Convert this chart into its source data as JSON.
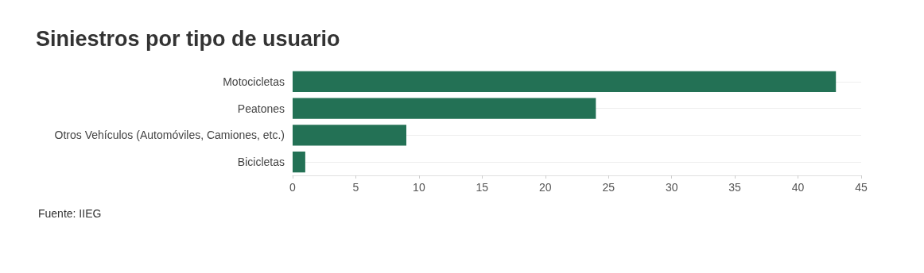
{
  "chart_data": {
    "type": "bar",
    "orientation": "horizontal",
    "title": "Siniestros por tipo de usuario",
    "categories": [
      "Motocicletas",
      "Peatones",
      "Otros Vehículos (Automóviles, Camiones, etc.)",
      "Bicicletas"
    ],
    "values": [
      43,
      24,
      9,
      1
    ],
    "color": "#237155",
    "xlim": [
      0,
      45
    ],
    "xticks": [
      0,
      5,
      10,
      15,
      20,
      25,
      30,
      35,
      40,
      45
    ],
    "grid": "y",
    "annotations": [
      "Fuente: IIEG"
    ]
  }
}
